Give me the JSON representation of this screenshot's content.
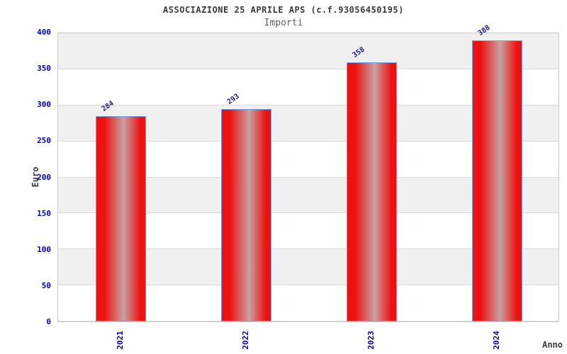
{
  "header": {
    "title": "ASSOCIAZIONE 25 APRILE APS (c.f.93056450195)",
    "subtitle": "Importi"
  },
  "chart_data": {
    "type": "bar",
    "title": "ASSOCIAZIONE 25 APRILE APS (c.f.93056450195)",
    "subtitle": "Importi",
    "categories": [
      "2021",
      "2022",
      "2023",
      "2024"
    ],
    "values": [
      284,
      293,
      358,
      388
    ],
    "xlabel": "Anno",
    "ylabel": "Euro",
    "ylim": [
      0,
      400
    ],
    "ytick_step": 50,
    "ytick_labels": [
      "0",
      "50",
      "100",
      "150",
      "200",
      "250",
      "300",
      "350",
      "400"
    ],
    "legend": "none",
    "grid": "alternating-horizontal-bands",
    "value_label_rotation_deg": -35,
    "xtick_label_rotation_deg": -90
  },
  "colors": {
    "bar_red": "#ee1111",
    "bar_highlight": "#c7a2a2",
    "bar_border": "#74a2e4",
    "axis_label_blue": "#0000cc",
    "value_label_blue": "#1b1b96",
    "band_gray": "#f0f0f0",
    "grid_line": "#d9d9d9",
    "plot_border": "#cbcbcb",
    "title_gray": "#3a3a3a",
    "subtitle_gray": "#5f5f5f"
  }
}
